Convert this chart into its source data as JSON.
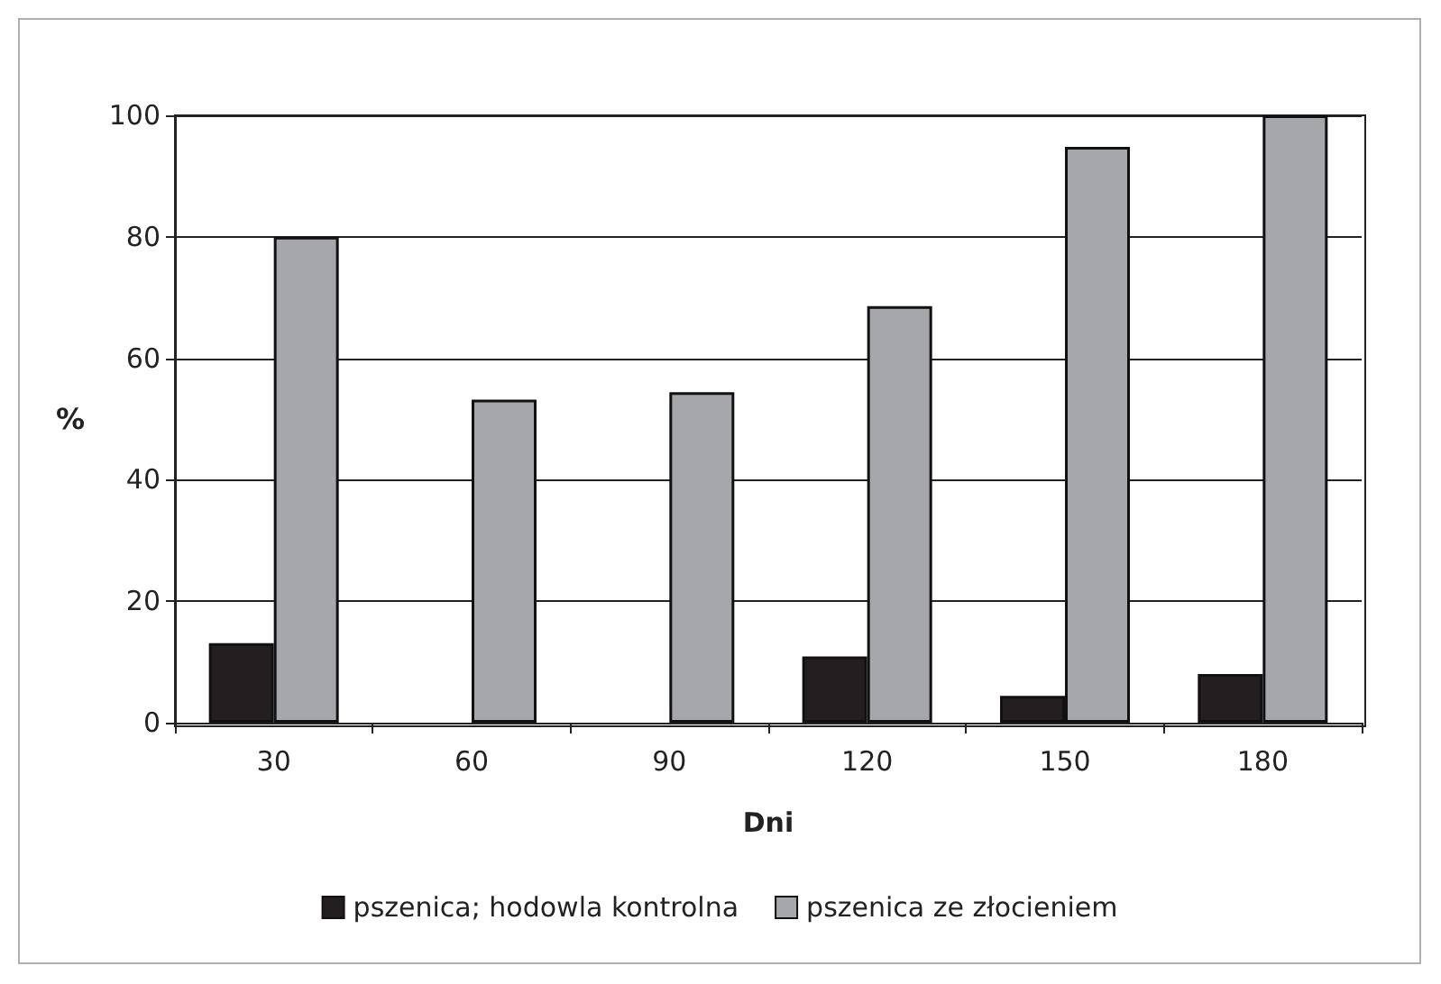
{
  "chart_data": {
    "type": "bar",
    "xlabel": "Dni",
    "ylabel": "%",
    "categories": [
      "30",
      "60",
      "90",
      "120",
      "150",
      "180"
    ],
    "series": [
      {
        "name": "pszenica; hodowla kontrolna",
        "color": "#231f20",
        "values": [
          13.1,
          0,
          0,
          10.9,
          4.4,
          8.0
        ]
      },
      {
        "name": "pszenica ze złocieniem",
        "color": "#a6a7aa",
        "values": [
          80,
          53.2,
          54.4,
          68.6,
          94.8,
          100
        ]
      }
    ],
    "ylim": [
      0,
      100
    ],
    "yticks": [
      0,
      20,
      40,
      60,
      80,
      100
    ],
    "grid": "y",
    "legend": "bottom"
  }
}
